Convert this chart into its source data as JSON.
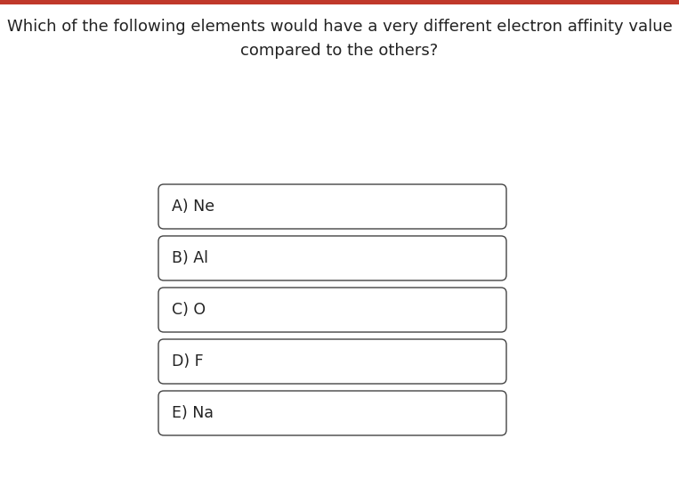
{
  "title_line1": "Which of the following elements would have a very different electron affinity value",
  "title_line2": "compared to the others?",
  "options": [
    "A) Ne",
    "B) Al",
    "C) O",
    "D) F",
    "E) Na"
  ],
  "background_color": "#ffffff",
  "top_bar_color": "#c0392b",
  "box_edge_color": "#444444",
  "box_face_color": "#ffffff",
  "title_color": "#222222",
  "option_color": "#222222",
  "title_fontsize": 13.0,
  "option_fontsize": 12.5,
  "fig_width": 7.63,
  "fig_height": 5.47,
  "dpi": 100
}
